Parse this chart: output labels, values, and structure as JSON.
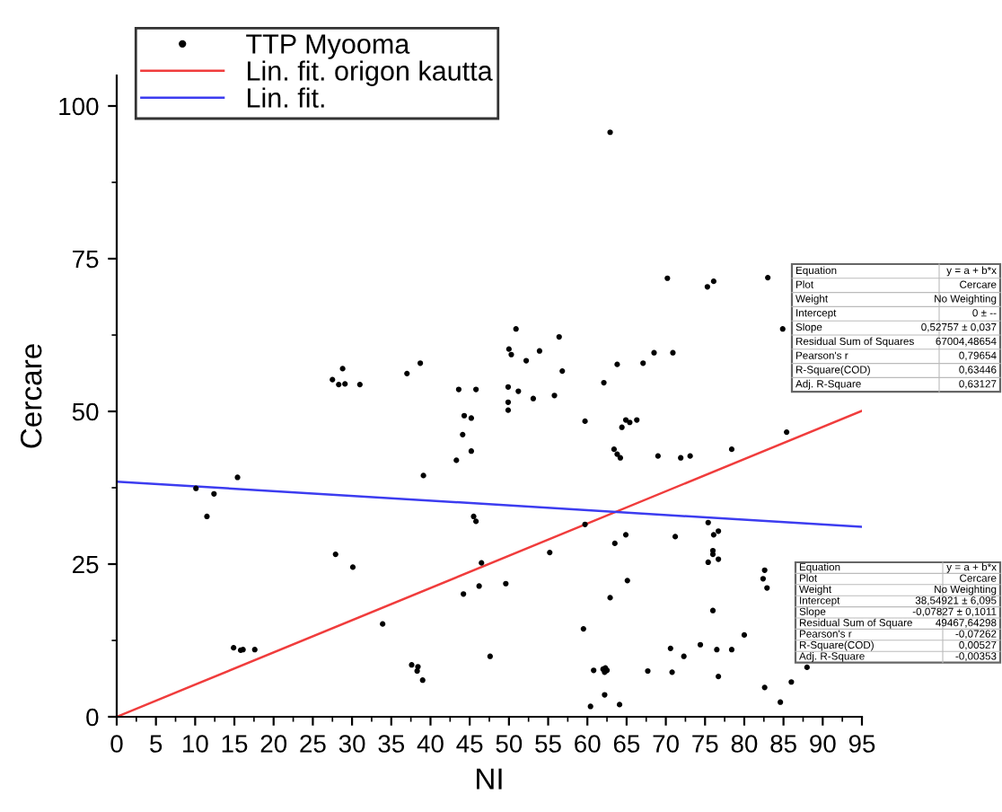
{
  "chart_data": {
    "type": "scatter",
    "xlabel": "NI",
    "ylabel": "Cercare",
    "xlim": [
      0,
      95
    ],
    "ylim": [
      0,
      105
    ],
    "xticks": [
      0,
      5,
      10,
      15,
      20,
      25,
      30,
      35,
      40,
      45,
      50,
      55,
      60,
      65,
      70,
      75,
      80,
      85,
      90,
      95
    ],
    "yticks": [
      0,
      25,
      50,
      75,
      100
    ],
    "grid": false,
    "legend": "top left",
    "series": [
      {
        "name": "TTP Myooma",
        "marker": "circle",
        "color": "#000000",
        "x": [
          10.1,
          11.5,
          12.4,
          15.4,
          14.9,
          15.8,
          16.1,
          17.6,
          27.5,
          28.3,
          28.8,
          29.1,
          31.0,
          27.9,
          30.1,
          33.9,
          37.0,
          38.7,
          39.1,
          37.6,
          38.4,
          38.3,
          39.0,
          43.6,
          45.8,
          44.3,
          45.2,
          44.1,
          45.2,
          43.3,
          45.5,
          45.8,
          46.5,
          46.2,
          44.2,
          47.6,
          49.6,
          50.0,
          50.3,
          50.9,
          52.2,
          53.9,
          49.9,
          51.2,
          49.9,
          49.9,
          53.1,
          55.8,
          55.2,
          62.9,
          70.2,
          75.3,
          76.1,
          83.0,
          84.9,
          56.4,
          56.8,
          59.7,
          62.1,
          63.8,
          67.1,
          68.5,
          70.9,
          64.4,
          64.9,
          65.4,
          66.3,
          63.4,
          63.8,
          64.2,
          69.0,
          71.9,
          73.1,
          78.4,
          85.4,
          59.7,
          63.5,
          64.9,
          71.2,
          75.4,
          76.1,
          76.7,
          76.0,
          76.0,
          75.4,
          76.7,
          65.1,
          62.9,
          82.6,
          82.4,
          82.9,
          76.0,
          59.5,
          70.6,
          72.3,
          74.4,
          76.5,
          78.4,
          80.0,
          60.8,
          62.0,
          62.3,
          62.5,
          62.2,
          67.7,
          70.8,
          76.7,
          82.6,
          86.0,
          88.0,
          84.6,
          62.2,
          60.4,
          64.1
        ],
        "values": [
          37.4,
          32.8,
          36.5,
          39.2,
          11.3,
          10.9,
          11.0,
          11.0,
          55.2,
          54.4,
          57.0,
          54.5,
          54.4,
          26.6,
          24.5,
          15.2,
          56.2,
          57.9,
          39.5,
          8.5,
          8.2,
          7.5,
          6.0,
          53.6,
          53.6,
          49.3,
          48.9,
          46.2,
          43.5,
          42.0,
          32.8,
          32.0,
          25.2,
          21.4,
          20.1,
          9.9,
          21.8,
          60.2,
          59.3,
          63.5,
          58.3,
          59.9,
          54.0,
          53.3,
          51.5,
          50.2,
          52.1,
          52.6,
          26.9,
          95.7,
          71.8,
          70.4,
          71.3,
          71.9,
          63.5,
          62.2,
          56.6,
          48.4,
          54.7,
          57.7,
          57.9,
          59.6,
          59.6,
          47.4,
          48.6,
          48.2,
          48.6,
          43.8,
          43.0,
          42.4,
          42.7,
          42.4,
          42.7,
          43.8,
          46.6,
          31.5,
          28.4,
          29.8,
          29.5,
          31.8,
          29.8,
          30.4,
          27.2,
          26.6,
          25.3,
          25.8,
          22.3,
          19.5,
          24.0,
          22.6,
          21.1,
          17.4,
          14.4,
          11.2,
          9.9,
          11.8,
          11.0,
          11.0,
          13.4,
          7.6,
          7.8,
          8.0,
          7.6,
          7.3,
          7.5,
          7.3,
          6.6,
          4.8,
          5.7,
          8.1,
          2.4,
          3.6,
          1.7,
          2.0
        ]
      },
      {
        "name": "Lin. fit. origon kautta",
        "type": "line",
        "color": "#f03c3c",
        "line_style": "solid",
        "x": [
          0,
          95
        ],
        "values": [
          0,
          50.1
        ]
      },
      {
        "name": "Lin. fit.",
        "type": "line",
        "color": "#3c3cf0",
        "line_style": "solid",
        "x": [
          0,
          95
        ],
        "values": [
          38.5,
          31.1
        ]
      }
    ],
    "annotations": [
      "Equation",
      "y = a + b*x",
      "Plot",
      "Cercare",
      "Weight",
      "No Weighting",
      "Intercept",
      "0 ± --",
      "Slope",
      "0,52757 ± 0,037",
      "Residual Sum of Squares",
      "67004,48654",
      "Pearson's r",
      "0,79654",
      "R-Square(COD)",
      "0,63446",
      "Adj. R-Square",
      "0,63127",
      "Equation",
      "y = a + b*x",
      "Plot",
      "Cercare",
      "Weight",
      "No Weighting",
      "Intercept",
      "38,54921 ± 6,095",
      "Slope",
      "-0,07827 ± 0,1011",
      "Residual Sum of Square",
      "49467,64298",
      "Pearson's r",
      "-0,07262",
      "R-Square(COD)",
      "0,00527",
      "Adj. R-Square",
      "-0,00353"
    ]
  }
}
